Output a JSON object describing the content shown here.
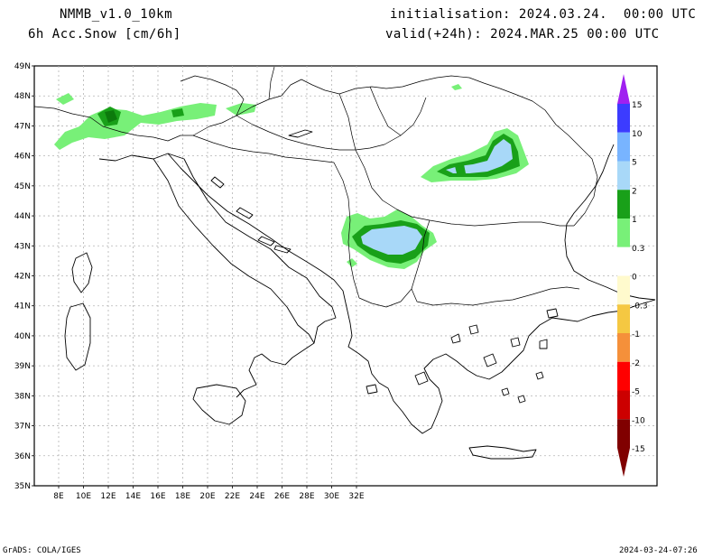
{
  "header": {
    "model": "NMMB_v1.0_10km",
    "field": "6h Acc.Snow [cm/6h]",
    "init": "initialisation: 2024.03.24.  00:00 UTC",
    "valid": "valid(+24h): 2024.MAR.25 00:00 UTC"
  },
  "axes": {
    "lat_labels": [
      "49N",
      "48N",
      "47N",
      "46N",
      "45N",
      "44N",
      "43N",
      "42N",
      "41N",
      "40N",
      "39N",
      "38N",
      "37N",
      "36N",
      "35N"
    ],
    "lon_labels": [
      "8E",
      "10E",
      "12E",
      "14E",
      "16E",
      "18E",
      "20E",
      "22E",
      "24E",
      "26E",
      "28E",
      "30E",
      "32E"
    ]
  },
  "legend": {
    "levels": [
      "15",
      "10",
      "5",
      "2",
      "1",
      "0.3",
      "0",
      "-0.3",
      "-1",
      "-2",
      "-5",
      "-10",
      "-15"
    ],
    "colors": [
      "#a020f0",
      "#3c3cff",
      "#78b4ff",
      "#a8d8f8",
      "#19a019",
      "#78f078",
      "#ffffff",
      "#fffacd",
      "#f5c842",
      "#f5903a",
      "#ff0000",
      "#cc0000",
      "#800000"
    ]
  },
  "footer": {
    "left": "GrADS: COLA/IGES",
    "right": "2024-03-24-07:26"
  }
}
